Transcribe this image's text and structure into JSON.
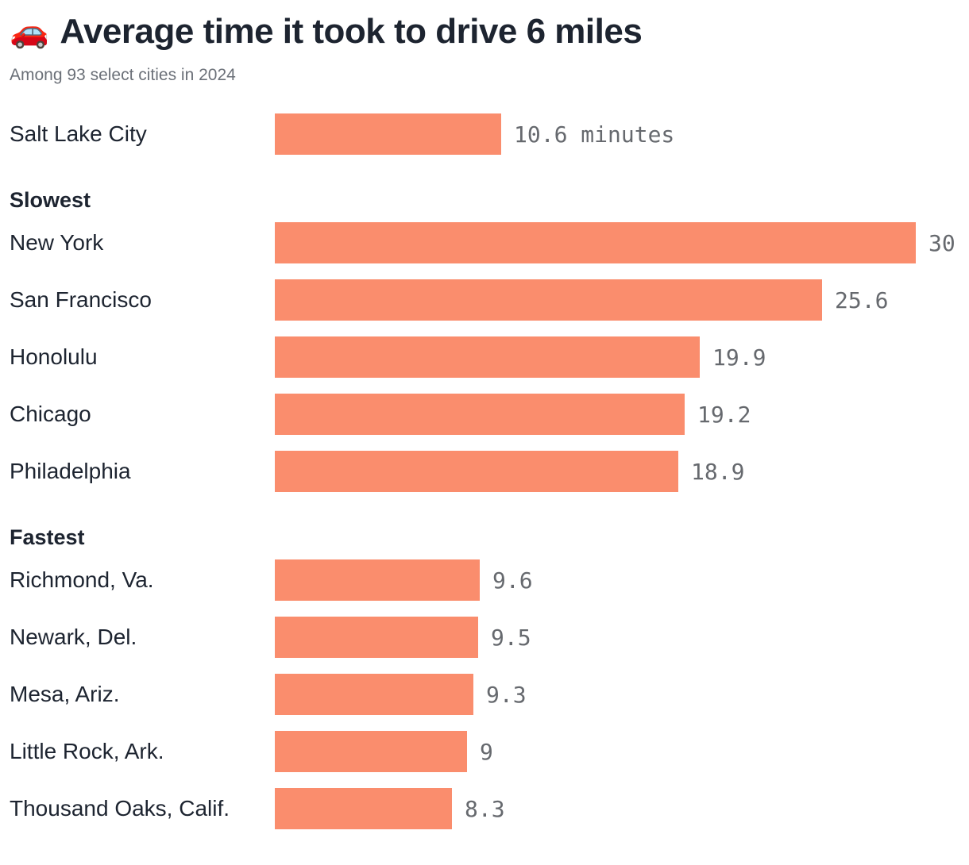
{
  "chart_data": {
    "type": "bar",
    "title": "Average time it took to drive 6 miles",
    "title_emoji": "🚗",
    "subtitle": "Among 93 select cities in 2024",
    "unit": "minutes",
    "bar_color": "#fa8d6d",
    "value_max": 30,
    "xlim": [
      0,
      30
    ],
    "legend": "none",
    "grid": false,
    "sections": [
      {
        "header": "",
        "rows": [
          {
            "label": "Salt Lake City",
            "value": 10.6,
            "value_label": "10.6 minutes"
          }
        ]
      },
      {
        "header": "Slowest",
        "rows": [
          {
            "label": "New York",
            "value": 30,
            "value_label": "30"
          },
          {
            "label": "San Francisco",
            "value": 25.6,
            "value_label": "25.6"
          },
          {
            "label": "Honolulu",
            "value": 19.9,
            "value_label": "19.9"
          },
          {
            "label": "Chicago",
            "value": 19.2,
            "value_label": "19.2"
          },
          {
            "label": "Philadelphia",
            "value": 18.9,
            "value_label": "18.9"
          }
        ]
      },
      {
        "header": "Fastest",
        "rows": [
          {
            "label": "Richmond, Va.",
            "value": 9.6,
            "value_label": "9.6"
          },
          {
            "label": "Newark, Del.",
            "value": 9.5,
            "value_label": "9.5"
          },
          {
            "label": "Mesa, Ariz.",
            "value": 9.3,
            "value_label": "9.3"
          },
          {
            "label": "Little Rock, Ark.",
            "value": 9,
            "value_label": "9"
          },
          {
            "label": "Thousand Oaks, Calif.",
            "value": 8.3,
            "value_label": "8.3"
          }
        ]
      }
    ]
  }
}
